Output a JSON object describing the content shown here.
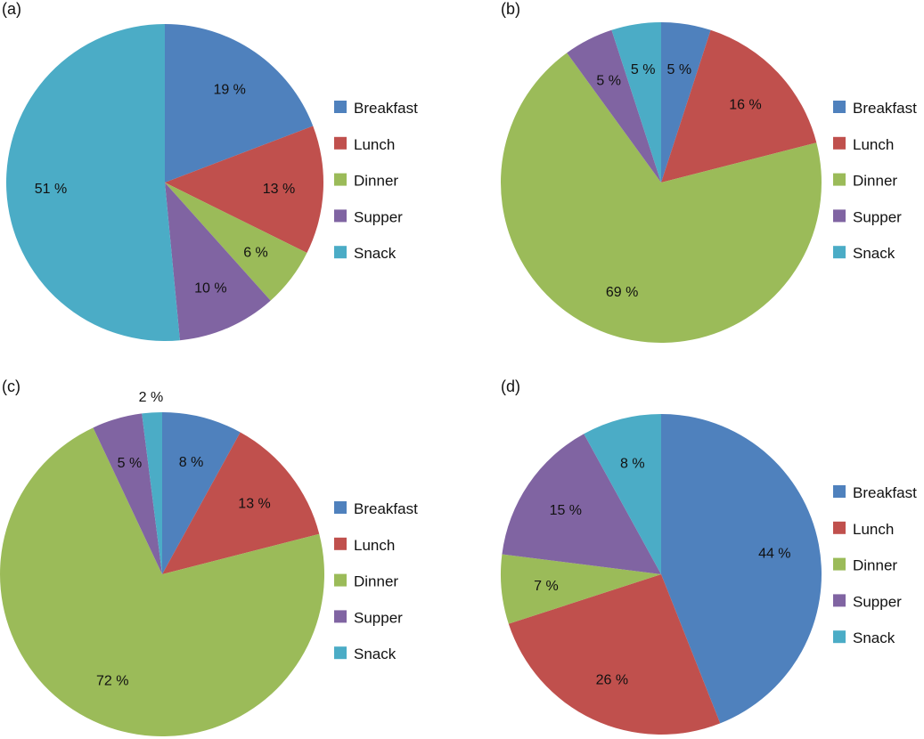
{
  "chart_data": [
    {
      "type": "pie",
      "panel": "(a)",
      "categories": [
        "Breakfast",
        "Lunch",
        "Dinner",
        "Supper",
        "Snack"
      ],
      "values": [
        19,
        13,
        6,
        10,
        51
      ],
      "labels": [
        "19 %",
        "13 %",
        "6 %",
        "10 %",
        "51 %"
      ],
      "legend": "right"
    },
    {
      "type": "pie",
      "panel": "(b)",
      "categories": [
        "Breakfast",
        "Lunch",
        "Dinner",
        "Supper",
        "Snack"
      ],
      "values": [
        5,
        16,
        69,
        5,
        5
      ],
      "labels": [
        "5 %",
        "16 %",
        "69 %",
        "5 %",
        "5 %"
      ],
      "legend": "right"
    },
    {
      "type": "pie",
      "panel": "(c)",
      "categories": [
        "Breakfast",
        "Lunch",
        "Dinner",
        "Supper",
        "Snack"
      ],
      "values": [
        8,
        13,
        72,
        5,
        2
      ],
      "labels": [
        "8 %",
        "13 %",
        "72 %",
        "5 %",
        "2 %"
      ],
      "legend": "right"
    },
    {
      "type": "pie",
      "panel": "(d)",
      "categories": [
        "Breakfast",
        "Lunch",
        "Dinner",
        "Supper",
        "Snack"
      ],
      "values": [
        44,
        26,
        7,
        15,
        8
      ],
      "labels": [
        "44 %",
        "26 %",
        "7 %",
        "15 %",
        "8 %"
      ],
      "legend": "right"
    }
  ],
  "colors": [
    "#4F81BD",
    "#C0504D",
    "#9BBB59",
    "#8064A2",
    "#4BACC6"
  ]
}
